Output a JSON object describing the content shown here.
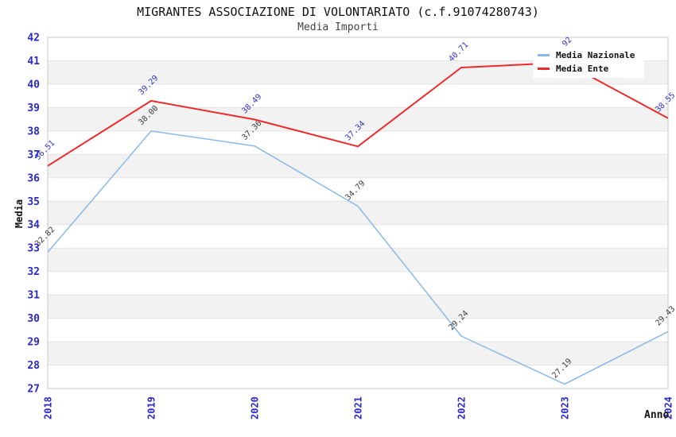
{
  "title": "MIGRANTES ASSOCIAZIONE DI VOLONTARIATO (c.f.91074280743)",
  "subtitle": "Media Importi",
  "chart_data": {
    "type": "line",
    "categories": [
      "2018",
      "2019",
      "2020",
      "2021",
      "2022",
      "2023",
      "2024"
    ],
    "series": [
      {
        "name": "Media Nazionale",
        "color": "#8ab9e8",
        "label_color": "#3d3d3d",
        "line_width": 1.5,
        "values": [
          32.82,
          38.0,
          37.36,
          34.79,
          29.24,
          27.19,
          29.43
        ]
      },
      {
        "name": "Media Ente",
        "color": "#ee2b2b",
        "label_color": "#3434c8",
        "line_width": 2,
        "values": [
          36.51,
          39.29,
          38.49,
          37.34,
          40.71,
          40.92,
          38.55
        ]
      }
    ],
    "xlabel": "Anno",
    "ylabel": "Media",
    "ylim": [
      27,
      42
    ],
    "y_tick_step": 1,
    "grid": "horizontal-bands",
    "legend_position": "top-right"
  },
  "style": {
    "axis_tick_color": "#2828cc",
    "band_color": "#f2f2f2",
    "grid_color": "#e4e4e4",
    "border_color": "#c9c9c9",
    "plot_bg": "#ffffff"
  }
}
